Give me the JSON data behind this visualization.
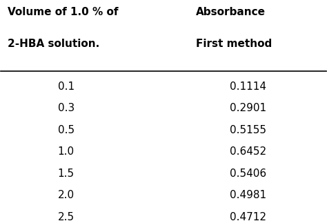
{
  "col1_header_line1": "Volume of 1.0 % of",
  "col1_header_line2": "2-HBA solution.",
  "col2_header_line1": "Absorbance",
  "col2_header_line2": "First method",
  "col1_values": [
    "0.1",
    "0.3",
    "0.5",
    "1.0",
    "1.5",
    "2.0",
    "2.5"
  ],
  "col2_values": [
    "0.1114",
    "0.2901",
    "0.5155",
    "0.6452",
    "0.5406",
    "0.4981",
    "0.4712"
  ],
  "background_color": "#ffffff",
  "text_color": "#000000",
  "font_size": 11,
  "header_font_size": 11
}
